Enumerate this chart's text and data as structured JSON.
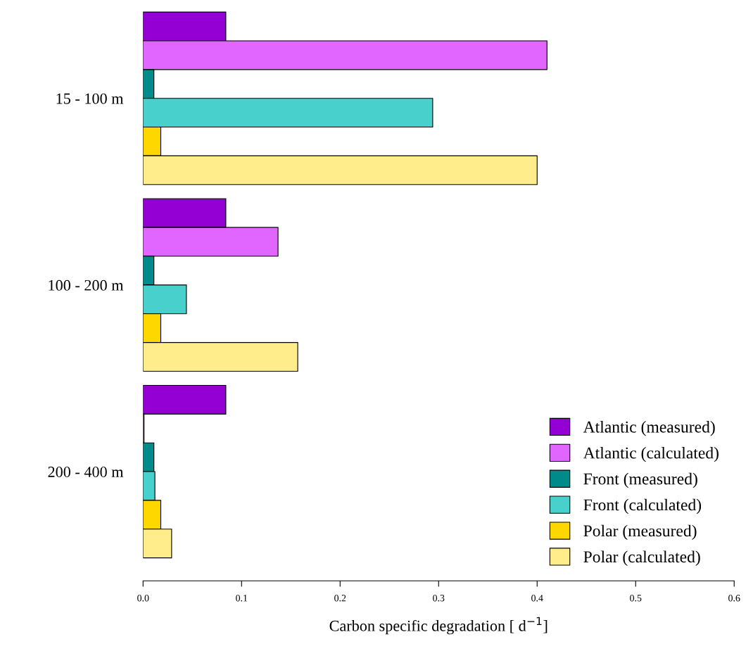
{
  "chart_data": {
    "type": "bar",
    "orientation": "horizontal",
    "xlabel": "Carbon specific degradation [ d$^{−1}$]",
    "categories": [
      "15 - 100 m",
      "100 - 200 m",
      "200 - 400 m"
    ],
    "series": [
      {
        "name": "Atlantic (measured)",
        "color": "#9400d3",
        "values": [
          0.084,
          0.084,
          0.084
        ]
      },
      {
        "name": "Atlantic (calculated)",
        "color": "#e066ff",
        "values": [
          0.41,
          0.137,
          0.001
        ]
      },
      {
        "name": "Front (measured)",
        "color": "#008b8b",
        "values": [
          0.011,
          0.011,
          0.011
        ]
      },
      {
        "name": "Front (calculated)",
        "color": "#48d1cc",
        "values": [
          0.294,
          0.044,
          0.012
        ]
      },
      {
        "name": "Polar (measured)",
        "color": "#ffd700",
        "values": [
          0.018,
          0.018,
          0.018
        ]
      },
      {
        "name": "Polar (calculated)",
        "color": "#ffec8b",
        "values": [
          0.4,
          0.157,
          0.029
        ]
      }
    ],
    "xlim": [
      0,
      0.6
    ],
    "xticks": [
      {
        "value": 0,
        "label": "0.0"
      },
      0.1,
      0.2,
      0.3,
      0.4,
      0.5,
      0.6
    ],
    "grid": false,
    "legend": "bottom right"
  }
}
